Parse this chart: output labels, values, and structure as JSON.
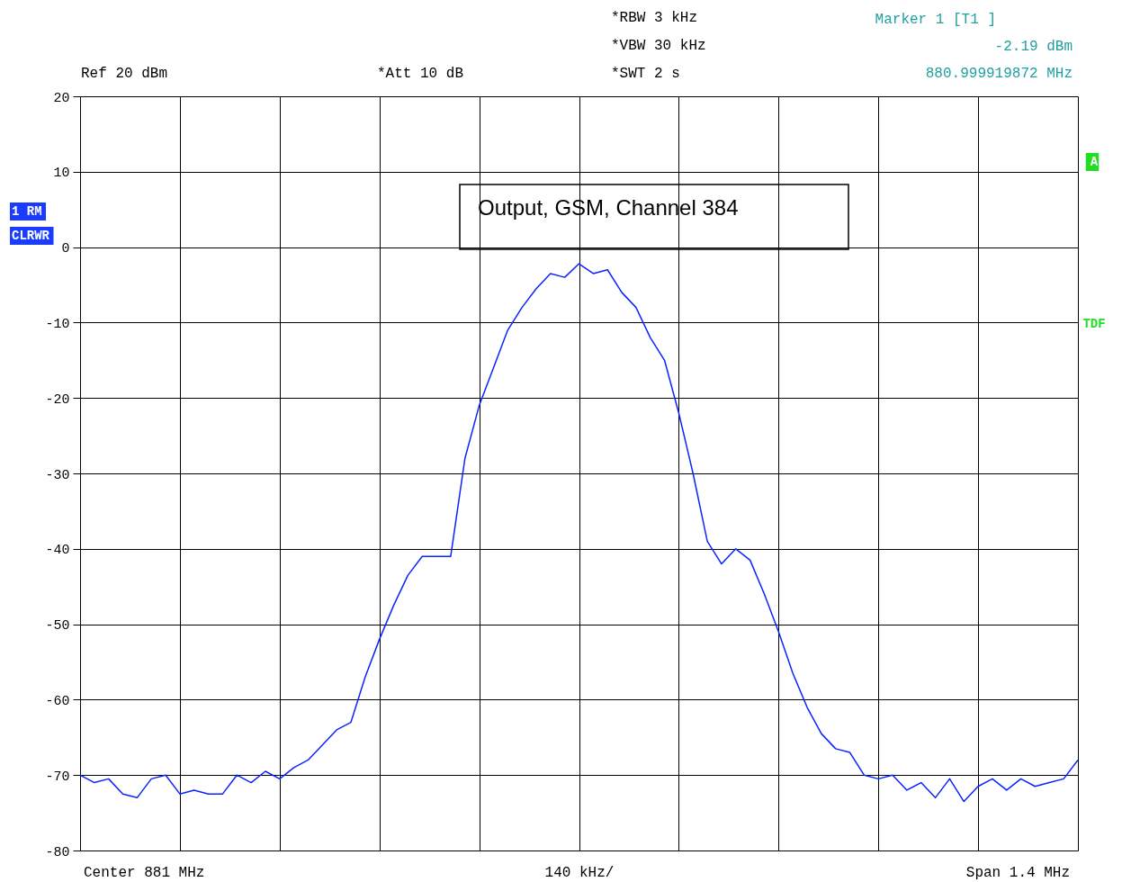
{
  "chart_data": {
    "type": "line",
    "categories": [
      null,
      null,
      null,
      null,
      null,
      null,
      null,
      null,
      null,
      null,
      null,
      null,
      null,
      null,
      null,
      null,
      null,
      null,
      null,
      null,
      null,
      null,
      null,
      null,
      null,
      null,
      null,
      null,
      null,
      null,
      null,
      null,
      null,
      null,
      null,
      null,
      null,
      null,
      null,
      null,
      null,
      null,
      null,
      null,
      null,
      null,
      null,
      null,
      null,
      null,
      null,
      null,
      null,
      null,
      null,
      null,
      null,
      null,
      null,
      null,
      null,
      null,
      null,
      null,
      null,
      null,
      null,
      null,
      null,
      null,
      null
    ],
    "ylim": [
      -80,
      20
    ],
    "yticks": [
      -80,
      -70,
      -60,
      -50,
      -40,
      -30,
      -20,
      -10,
      0,
      10,
      20
    ],
    "tick_labels": "y",
    "grid": true,
    "line_style": "solid",
    "marker": "none",
    "series": [
      {
        "color": "#0a24ff",
        "values": [
          -70,
          -71,
          -70.5,
          -72.5,
          -73,
          -70.5,
          -70,
          -72.5,
          -72,
          -72.5,
          -72.5,
          -70,
          -71,
          -69.5,
          -70.5,
          -69,
          -68,
          -66,
          -64,
          -63,
          -57,
          -52,
          -47.5,
          -43.5,
          -41,
          -41,
          -41,
          -28,
          -21,
          -16,
          -11,
          -8,
          -5.5,
          -3.5,
          -4,
          -2.2,
          -3.5,
          -3,
          -6,
          -8,
          -12,
          -15,
          -22,
          -30,
          -39,
          -42,
          -40,
          -41.5,
          -46,
          -51,
          -56.5,
          -61,
          -64.5,
          -66.5,
          -67,
          -70,
          -70.5,
          -70,
          -72,
          -71,
          -73,
          -70.5,
          -73.5,
          -71.5,
          -70.5,
          -72,
          -70.5,
          -71.5,
          -71,
          -70.5,
          -68
        ]
      }
    ],
    "annotations": [
      "Ref   20 dBm",
      "*Att   10 dB",
      "*RBW  3 kHz",
      "*VBW  30 kHz",
      "*SWT  2 s",
      "Marker 1 [T1 ]",
      "-2.19 dBm",
      "880.999919872 MHz",
      "Output, GSM, Channel 384",
      "1 RM",
      "CLRWR",
      "A",
      "TDF",
      "Center  881 MHz",
      "140 kHz/",
      "Span  1.4 MHz"
    ]
  }
}
